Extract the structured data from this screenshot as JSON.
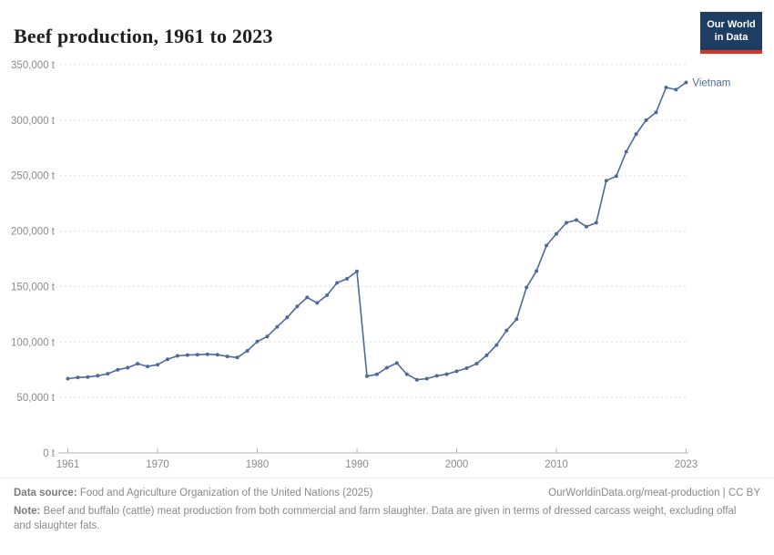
{
  "header": {
    "title": "Beef production, 1961 to 2023"
  },
  "logo": {
    "line1": "Our World",
    "line2": "in Data"
  },
  "entity_label": "Vietnam",
  "colors": {
    "series": "#4c6a9c",
    "logo_bg": "#1d3d63",
    "logo_bar": "#d8352a",
    "grid": "#dedede",
    "axis": "#b3b3b3",
    "tick_text": "#8b8b8b"
  },
  "chart_data": {
    "type": "line",
    "title": "Beef production, 1961 to 2023",
    "unit": "t",
    "xlabel": "",
    "ylabel": "",
    "xlim": [
      1961,
      2023
    ],
    "ylim": [
      0,
      350000
    ],
    "grid": "horizontal-dashed",
    "legend_position": "end-of-line",
    "xticks": [
      1961,
      1970,
      1980,
      1990,
      2000,
      2010,
      2023
    ],
    "yticks": [
      {
        "v": 0,
        "label": "0 t"
      },
      {
        "v": 50000,
        "label": "50,000 t"
      },
      {
        "v": 100000,
        "label": "100,000 t"
      },
      {
        "v": 150000,
        "label": "150,000 t"
      },
      {
        "v": 200000,
        "label": "200,000 t"
      },
      {
        "v": 250000,
        "label": "250,000 t"
      },
      {
        "v": 300000,
        "label": "300,000 t"
      },
      {
        "v": 350000,
        "label": "350,000 t"
      }
    ],
    "x": [
      1961,
      1962,
      1963,
      1964,
      1965,
      1966,
      1967,
      1968,
      1969,
      1970,
      1971,
      1972,
      1973,
      1974,
      1975,
      1976,
      1977,
      1978,
      1979,
      1980,
      1981,
      1982,
      1983,
      1984,
      1985,
      1986,
      1987,
      1988,
      1989,
      1990,
      1991,
      1992,
      1993,
      1994,
      1995,
      1996,
      1997,
      1998,
      1999,
      2000,
      2001,
      2002,
      2003,
      2004,
      2005,
      2006,
      2007,
      2008,
      2009,
      2010,
      2011,
      2012,
      2013,
      2014,
      2015,
      2016,
      2017,
      2018,
      2019,
      2020,
      2021,
      2022,
      2023
    ],
    "series": [
      {
        "name": "Vietnam",
        "color": "#4c6a9c",
        "values": [
          67000,
          68000,
          68400,
          69600,
          71400,
          75000,
          76800,
          80400,
          78000,
          79500,
          84500,
          87500,
          88200,
          88600,
          89000,
          88600,
          87000,
          86000,
          92000,
          100400,
          105000,
          113700,
          122200,
          132000,
          140200,
          135200,
          142200,
          153300,
          157000,
          163700,
          69200,
          70800,
          76800,
          81000,
          71000,
          66000,
          67000,
          69500,
          71000,
          73600,
          76400,
          80500,
          88000,
          97300,
          110400,
          120500,
          149200,
          164000,
          187000,
          197500,
          207500,
          210000,
          204000,
          207500,
          245500,
          249500,
          271500,
          287500,
          300000,
          307000,
          329500,
          327500,
          334000
        ]
      }
    ]
  },
  "footer": {
    "source_label": "Data source:",
    "source_text": " Food and Agriculture Organization of the United Nations (2025)",
    "link_text": "OurWorldinData.org/meat-production | CC BY",
    "note_label": "Note:",
    "note_text": " Beef and buffalo (cattle) meat production from both commercial and farm slaughter. Data are given in terms of dressed carcass weight, excluding offal and slaughter fats."
  }
}
